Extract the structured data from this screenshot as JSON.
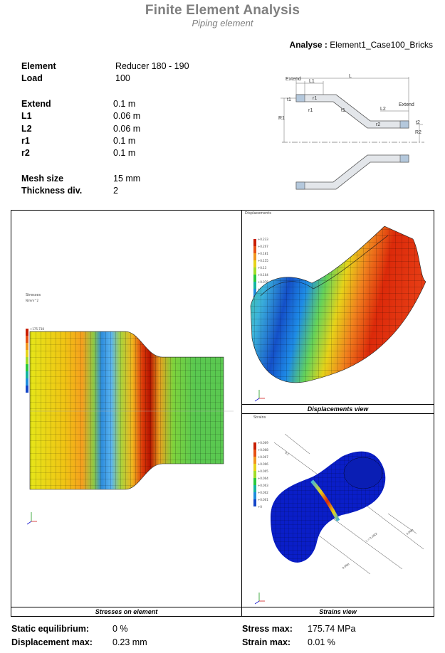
{
  "header": {
    "title": "Finite Element Analysis",
    "subtitle": "Piping element",
    "analyse_label": "Analyse :",
    "analyse_value": "Element1_Case100_Bricks"
  },
  "parameters": [
    {
      "label": "Element",
      "value": "Reducer 180 - 190"
    },
    {
      "label": "Load",
      "value": "100"
    },
    {
      "label": "Extend",
      "value": "0.1 m"
    },
    {
      "label": "L1",
      "value": "0.06 m"
    },
    {
      "label": "L2",
      "value": "0.06 m"
    },
    {
      "label": "r1",
      "value": "0.1 m"
    },
    {
      "label": "r2",
      "value": "0.1 m"
    },
    {
      "label": "Mesh size",
      "value": "15 mm"
    },
    {
      "label": "Thickness div.",
      "value": "2"
    }
  ],
  "diagram": {
    "labels": [
      "Extend",
      "L1",
      "L",
      "t1",
      "r1",
      "r1",
      "t1",
      "L2",
      "Extend",
      "r2",
      "t2",
      "R1",
      "R2"
    ]
  },
  "stresses_panel": {
    "caption": "Stresses on element",
    "legend_title": "Stresses",
    "legend_unit": "N/mm^2",
    "legend_values": [
      "+175.738",
      "+156.21",
      "+136.683",
      "+117.157",
      "+97.631",
      "+78.105",
      "+58.578",
      "+39.052",
      "+19.526",
      "+0"
    ]
  },
  "displacements_panel": {
    "caption": "Displacements view",
    "legend_title": "Displacements",
    "legend_values": [
      "+0.233",
      "+0.207",
      "+0.181",
      "+0.155",
      "+0.13",
      "+0.104",
      "+0.078",
      "+0.052",
      "+0.026",
      "+0"
    ]
  },
  "strains_panel": {
    "caption": "Strains view",
    "legend_title": "Strains",
    "legend_values": [
      "+0.009",
      "+0.008",
      "+0.007",
      "+0.006",
      "+0.005",
      "+0.004",
      "+0.003",
      "+0.002",
      "+0.001",
      "+0"
    ],
    "dim_labels": [
      "0.1",
      "L = 0.1622",
      "0.06m",
      "0.06m"
    ]
  },
  "results": {
    "static_equilibrium_label": "Static equilibrium:",
    "static_equilibrium_value": "0 %",
    "displacement_max_label": "Displacement max:",
    "displacement_max_value": "0.23 mm",
    "stress_max_label": "Stress max:",
    "stress_max_value": "175.74 MPa",
    "strain_max_label": "Strain max:",
    "strain_max_value": "0.01 %"
  },
  "colors": {
    "title_gray": "#7f7f7f",
    "stress_red": "#c81e00",
    "mesh_blue": "#0a1ec8"
  }
}
